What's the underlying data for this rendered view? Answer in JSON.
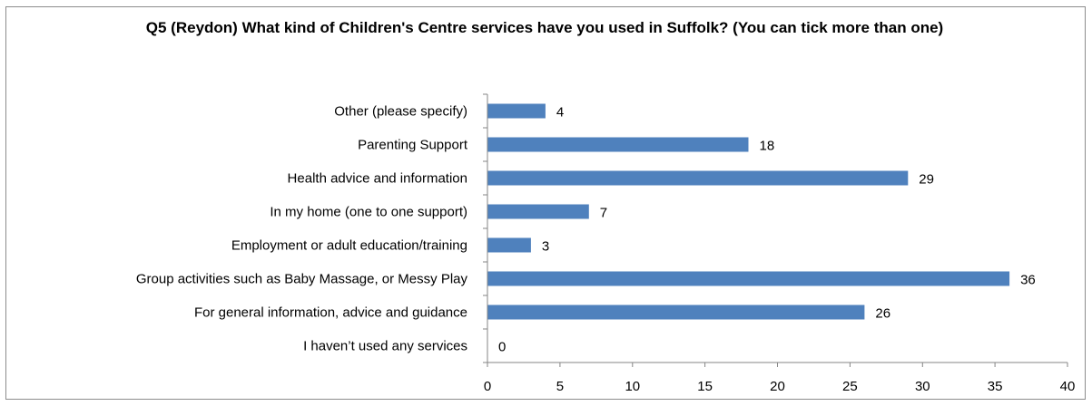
{
  "chart_data": {
    "type": "bar",
    "orientation": "horizontal",
    "title": "Q5 (Reydon) What kind of Children's Centre services have you used in Suffolk? (You can tick more than one)",
    "categories": [
      "Other (please specify)",
      "Parenting Support",
      "Health advice and information",
      "In my home (one to one support)",
      "Employment or adult education/training",
      "Group activities such as Baby Massage, or Messy Play",
      "For general information, advice and guidance",
      "I haven’t used any services"
    ],
    "values": [
      4,
      18,
      29,
      7,
      3,
      36,
      26,
      0
    ],
    "xlim": [
      0,
      40
    ],
    "xticks": [
      0,
      5,
      10,
      15,
      20,
      25,
      30,
      35,
      40
    ],
    "xlabel": "",
    "ylabel": "",
    "grid": false,
    "legend": "none",
    "bar_color": "#4f81bd",
    "data_labels": true
  }
}
